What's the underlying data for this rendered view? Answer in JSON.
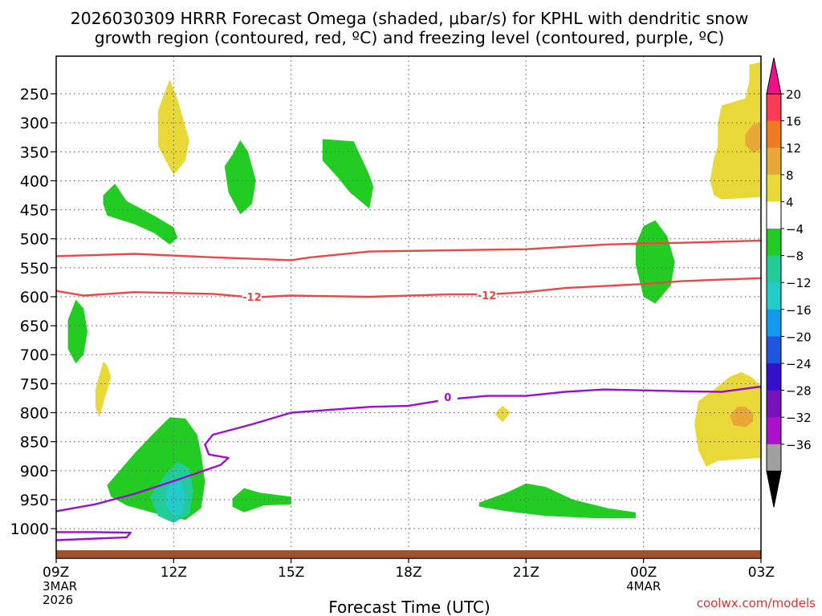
{
  "chart_data": {
    "type": "time-height cross section",
    "title_line1": "2026030309 HRRR Forecast Omega (shaded, μbar/s) for KPHL with dendritic snow",
    "title_line2": "growth region (contoured, red, ºC) and freezing level (contoured, purple, ºC)",
    "xlabel": "Forecast Time (UTC)",
    "credit": "coolwx.com/models",
    "x_ticks": [
      {
        "h": 0,
        "label": "09Z",
        "sub1": "3MAR",
        "sub2": "2026"
      },
      {
        "h": 3,
        "label": "12Z",
        "sub1": "",
        "sub2": ""
      },
      {
        "h": 6,
        "label": "15Z",
        "sub1": "",
        "sub2": ""
      },
      {
        "h": 9,
        "label": "18Z",
        "sub1": "",
        "sub2": ""
      },
      {
        "h": 12,
        "label": "21Z",
        "sub1": "",
        "sub2": ""
      },
      {
        "h": 15,
        "label": "00Z",
        "sub1": "4MAR",
        "sub2": ""
      },
      {
        "h": 18,
        "label": "03Z",
        "sub1": "",
        "sub2": ""
      }
    ],
    "y_ticks": [
      {
        "p": 250,
        "label": "250"
      },
      {
        "p": 300,
        "label": "300"
      },
      {
        "p": 350,
        "label": "350"
      },
      {
        "p": 400,
        "label": "400"
      },
      {
        "p": 450,
        "label": "450"
      },
      {
        "p": 500,
        "label": "500"
      },
      {
        "p": 550,
        "label": "550"
      },
      {
        "p": 600,
        "label": "600"
      },
      {
        "p": 650,
        "label": "650"
      },
      {
        "p": 700,
        "label": "700"
      },
      {
        "p": 750,
        "label": "750"
      },
      {
        "p": 800,
        "label": "800"
      },
      {
        "p": 850,
        "label": "850"
      },
      {
        "p": 900,
        "label": "900"
      },
      {
        "p": 950,
        "label": "950"
      },
      {
        "p": 1000,
        "label": "1000"
      }
    ],
    "p_range": [
      185,
      1040
    ],
    "hour_range": [
      0,
      18
    ],
    "colorbar": {
      "labels": [
        "20",
        "16",
        "12",
        "8",
        "4",
        "−4",
        "−8",
        "−12",
        "−16",
        "−20",
        "−24",
        "−28",
        "−32",
        "−36"
      ],
      "colors": [
        "#ff3a55",
        "#f07a20",
        "#e8a838",
        "#e8d838",
        "#ffffff",
        "#22cc22",
        "#22cc99",
        "#22cccc",
        "#1199ee",
        "#2255dd",
        "#3311cc",
        "#7711bb",
        "#aa11cc",
        "#a0a0a0"
      ],
      "top_arrow_color": "#ee1188",
      "bottom_arrow_color": "#000000"
    },
    "contours": [
      {
        "name": "dgz-top-contour",
        "label": "",
        "color": "#f04545",
        "points": [
          [
            0,
            530
          ],
          [
            2,
            526
          ],
          [
            4,
            532
          ],
          [
            6,
            537
          ],
          [
            6.5,
            532
          ],
          [
            8,
            522
          ],
          [
            10,
            520
          ],
          [
            12,
            518
          ],
          [
            14,
            510
          ],
          [
            15,
            508
          ],
          [
            16,
            507
          ],
          [
            18,
            503
          ]
        ],
        "labels": []
      },
      {
        "name": "dgz-minus12-contour",
        "label": "-12",
        "color": "#f04545",
        "points": [
          [
            0,
            590
          ],
          [
            0.7,
            598
          ],
          [
            2,
            592
          ],
          [
            4,
            595
          ],
          [
            5,
            601
          ],
          [
            6,
            598
          ],
          [
            8,
            600
          ],
          [
            10,
            596
          ],
          [
            11,
            596
          ],
          [
            12,
            592
          ],
          [
            13,
            585
          ],
          [
            15,
            578
          ],
          [
            16,
            573
          ],
          [
            18,
            568
          ]
        ],
        "labels": [
          {
            "h": 5,
            "p": 600,
            "text": "-12"
          },
          {
            "h": 11,
            "p": 597,
            "text": "-12"
          }
        ]
      },
      {
        "name": "freezing-level-contour",
        "label": "0",
        "color": "#9911cc",
        "points": [
          [
            0,
            1020
          ],
          [
            1.8,
            1015
          ],
          [
            1.9,
            1007
          ],
          [
            1,
            1006
          ],
          [
            0,
            1006
          ]
        ],
        "labels": []
      },
      {
        "name": "freezing-level-main-contour",
        "label": "0",
        "color": "#9911cc",
        "points": [
          [
            0,
            970
          ],
          [
            1,
            958
          ],
          [
            2,
            940
          ],
          [
            3,
            918
          ],
          [
            4.2,
            890
          ],
          [
            4.4,
            878
          ],
          [
            3.9,
            872
          ],
          [
            3.8,
            855
          ],
          [
            4,
            838
          ],
          [
            5,
            820
          ],
          [
            6,
            800
          ],
          [
            8,
            790
          ],
          [
            9,
            788
          ],
          [
            10,
            777
          ],
          [
            11,
            771
          ],
          [
            12,
            771
          ],
          [
            13,
            764
          ],
          [
            14,
            760
          ],
          [
            16,
            763
          ],
          [
            17,
            764
          ],
          [
            18,
            755
          ]
        ],
        "labels": [
          {
            "h": 10,
            "p": 773,
            "text": "0"
          }
        ]
      }
    ],
    "omega_regions": [
      {
        "name": "omega-pos-12z-upper",
        "value": "4",
        "color": "#e8d838",
        "points": [
          [
            2.7,
            260
          ],
          [
            2.9,
            225
          ],
          [
            3.1,
            260
          ],
          [
            3.4,
            330
          ],
          [
            3.3,
            365
          ],
          [
            3.0,
            390
          ],
          [
            2.6,
            340
          ],
          [
            2.6,
            280
          ]
        ]
      },
      {
        "name": "omega-neg-14z-upper",
        "value": "-4",
        "color": "#22cc22",
        "points": [
          [
            4.5,
            355
          ],
          [
            4.7,
            330
          ],
          [
            4.9,
            350
          ],
          [
            5.1,
            400
          ],
          [
            5.0,
            440
          ],
          [
            4.7,
            458
          ],
          [
            4.4,
            420
          ],
          [
            4.3,
            375
          ]
        ]
      },
      {
        "name": "omega-neg-11z-mid",
        "value": "-4",
        "color": "#22cc22",
        "points": [
          [
            1.2,
            425
          ],
          [
            1.5,
            405
          ],
          [
            1.8,
            435
          ],
          [
            2.5,
            460
          ],
          [
            3.0,
            480
          ],
          [
            3.1,
            498
          ],
          [
            2.9,
            510
          ],
          [
            2.5,
            490
          ],
          [
            2,
            475
          ],
          [
            1.3,
            460
          ],
          [
            1.2,
            440
          ]
        ]
      },
      {
        "name": "omega-neg-17z-upper",
        "value": "-4",
        "color": "#22cc22",
        "points": [
          [
            6.8,
            328
          ],
          [
            7.6,
            332
          ],
          [
            8.0,
            390
          ],
          [
            8.1,
            410
          ],
          [
            8.0,
            448
          ],
          [
            7.5,
            420
          ],
          [
            7.2,
            395
          ],
          [
            6.8,
            365
          ]
        ]
      },
      {
        "name": "omega-neg-10z-mid",
        "value": "-4",
        "color": "#22cc22",
        "points": [
          [
            0.3,
            640
          ],
          [
            0.5,
            605
          ],
          [
            0.7,
            620
          ],
          [
            0.8,
            660
          ],
          [
            0.7,
            700
          ],
          [
            0.5,
            715
          ],
          [
            0.3,
            690
          ]
        ]
      },
      {
        "name": "omega-pos-11z-low",
        "value": "4",
        "color": "#e8d838",
        "points": [
          [
            1.0,
            760
          ],
          [
            1.2,
            712
          ],
          [
            1.3,
            718
          ],
          [
            1.4,
            738
          ],
          [
            1.2,
            785
          ],
          [
            1.1,
            808
          ],
          [
            1.0,
            790
          ]
        ]
      },
      {
        "name": "omega-neg-12z-low",
        "value": "-4",
        "color": "#22cc22",
        "points": [
          [
            1.3,
            925
          ],
          [
            2.0,
            870
          ],
          [
            2.5,
            835
          ],
          [
            2.9,
            808
          ],
          [
            3.3,
            810
          ],
          [
            3.6,
            838
          ],
          [
            3.7,
            870
          ],
          [
            3.8,
            920
          ],
          [
            3.7,
            965
          ],
          [
            3.3,
            985
          ],
          [
            2.6,
            975
          ],
          [
            1.8,
            960
          ],
          [
            1.4,
            945
          ]
        ]
      },
      {
        "name": "omega-neg8-12z-core",
        "value": "-8",
        "color": "#22cc99",
        "points": [
          [
            2.4,
            945
          ],
          [
            2.8,
            905
          ],
          [
            3.1,
            885
          ],
          [
            3.4,
            895
          ],
          [
            3.5,
            935
          ],
          [
            3.4,
            975
          ],
          [
            3.0,
            990
          ],
          [
            2.6,
            978
          ]
        ]
      },
      {
        "name": "omega-neg12-12z-core",
        "value": "-12",
        "color": "#22cccc",
        "points": [
          [
            2.8,
            935
          ],
          [
            3.0,
            915
          ],
          [
            3.2,
            920
          ],
          [
            3.3,
            945
          ],
          [
            3.2,
            975
          ],
          [
            3.0,
            978
          ],
          [
            2.8,
            960
          ]
        ]
      },
      {
        "name": "omega-neg-14z-low",
        "value": "-4",
        "color": "#22cc22",
        "points": [
          [
            4.5,
            948
          ],
          [
            4.8,
            930
          ],
          [
            5.2,
            938
          ],
          [
            6.0,
            945
          ],
          [
            6.0,
            958
          ],
          [
            5.3,
            960
          ],
          [
            4.8,
            972
          ],
          [
            4.5,
            962
          ]
        ]
      },
      {
        "name": "omega-pos-20z-low",
        "value": "4",
        "color": "#e8d838",
        "points": [
          [
            11.2,
            802
          ],
          [
            11.4,
            788
          ],
          [
            11.6,
            800
          ],
          [
            11.4,
            816
          ]
        ]
      },
      {
        "name": "omega-neg-21z-low",
        "value": "-4",
        "color": "#22cc22",
        "points": [
          [
            10.8,
            955
          ],
          [
            11.5,
            938
          ],
          [
            12,
            922
          ],
          [
            12.5,
            928
          ],
          [
            13.2,
            950
          ],
          [
            14.1,
            965
          ],
          [
            14.8,
            972
          ],
          [
            14.8,
            982
          ],
          [
            13.8,
            982
          ],
          [
            12.5,
            978
          ],
          [
            11.5,
            970
          ],
          [
            10.8,
            962
          ]
        ]
      },
      {
        "name": "omega-neg-00z-mid",
        "value": "-4",
        "color": "#22cc22",
        "points": [
          [
            14.8,
            545
          ],
          [
            14.8,
            510
          ],
          [
            15,
            478
          ],
          [
            15.3,
            468
          ],
          [
            15.6,
            495
          ],
          [
            15.8,
            540
          ],
          [
            15.7,
            580
          ],
          [
            15.3,
            612
          ],
          [
            15.0,
            600
          ]
        ]
      },
      {
        "name": "omega-pos-02z-upper",
        "value": "4",
        "color": "#e8d838",
        "points": [
          [
            18,
            195
          ],
          [
            17.7,
            200
          ],
          [
            17.7,
            228
          ],
          [
            17.6,
            258
          ],
          [
            17.0,
            270
          ],
          [
            16.9,
            300
          ],
          [
            16.9,
            340
          ],
          [
            16.8,
            360
          ],
          [
            16.7,
            400
          ],
          [
            16.8,
            425
          ],
          [
            17.0,
            432
          ],
          [
            17.5,
            430
          ],
          [
            18,
            428
          ]
        ]
      },
      {
        "name": "omega-pos8-03z-upper",
        "value": "8",
        "color": "#e8a838",
        "points": [
          [
            17.8,
            302
          ],
          [
            17.6,
            320
          ],
          [
            17.6,
            338
          ],
          [
            17.8,
            352
          ],
          [
            18,
            345
          ],
          [
            18,
            300
          ]
        ]
      },
      {
        "name": "omega-pos-02z-low",
        "value": "4",
        "color": "#e8d838",
        "points": [
          [
            16.4,
            780
          ],
          [
            16.8,
            760
          ],
          [
            17.2,
            738
          ],
          [
            17.5,
            730
          ],
          [
            17.8,
            740
          ],
          [
            18,
            755
          ],
          [
            18,
            878
          ],
          [
            17.5,
            880
          ],
          [
            16.9,
            883
          ],
          [
            16.6,
            893
          ],
          [
            16.4,
            865
          ],
          [
            16.3,
            820
          ]
        ]
      },
      {
        "name": "omega-pos8-02z-low",
        "value": "8",
        "color": "#e8a838",
        "points": [
          [
            17.2,
            805
          ],
          [
            17.4,
            790
          ],
          [
            17.6,
            790
          ],
          [
            17.8,
            800
          ],
          [
            17.8,
            815
          ],
          [
            17.6,
            825
          ],
          [
            17.3,
            822
          ]
        ]
      }
    ],
    "ground_color": "#a0522d"
  }
}
